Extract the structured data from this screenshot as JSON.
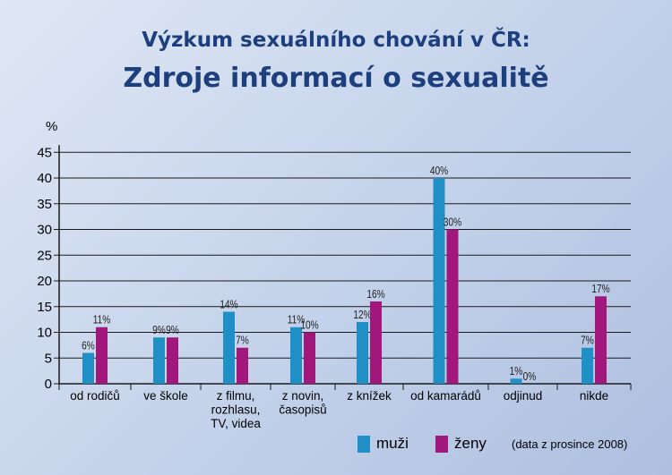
{
  "title_line1": "Výzkum sexuálního chování v ČR:",
  "title_line2": "Zdroje informací o sexualitě",
  "note": "(data z prosince 2008)",
  "colors": {
    "muzi": "#1f8fc6",
    "zeny": "#a1177c",
    "grid": "#1a1a1a"
  },
  "chart_data": {
    "type": "bar",
    "ylabel": "%",
    "ylim": [
      0,
      45
    ],
    "yticks": [
      0,
      5,
      10,
      15,
      20,
      25,
      30,
      35,
      40,
      45
    ],
    "grid": true,
    "legend_position": "bottom",
    "categories": [
      [
        "od rodičů"
      ],
      [
        "ve škole"
      ],
      [
        "z filmu,",
        "rozhlasu,",
        "TV, videa"
      ],
      [
        "z novin,",
        "časopisů"
      ],
      [
        "z knížek"
      ],
      [
        "od kamarádů"
      ],
      [
        "odjinud"
      ],
      [
        "nikde"
      ]
    ],
    "series": [
      {
        "name": "muži",
        "values": [
          6,
          9,
          14,
          11,
          12,
          40,
          1,
          7
        ],
        "labels": [
          "6%",
          "9%",
          "14%",
          "11%",
          "12%",
          "40%",
          "1%",
          "7%"
        ]
      },
      {
        "name": "ženy",
        "values": [
          11,
          9,
          7,
          10,
          16,
          30,
          0,
          17
        ],
        "labels": [
          "11%",
          "9%",
          "7%",
          "10%",
          "16%",
          "30%",
          "0%",
          "17%"
        ]
      }
    ]
  }
}
